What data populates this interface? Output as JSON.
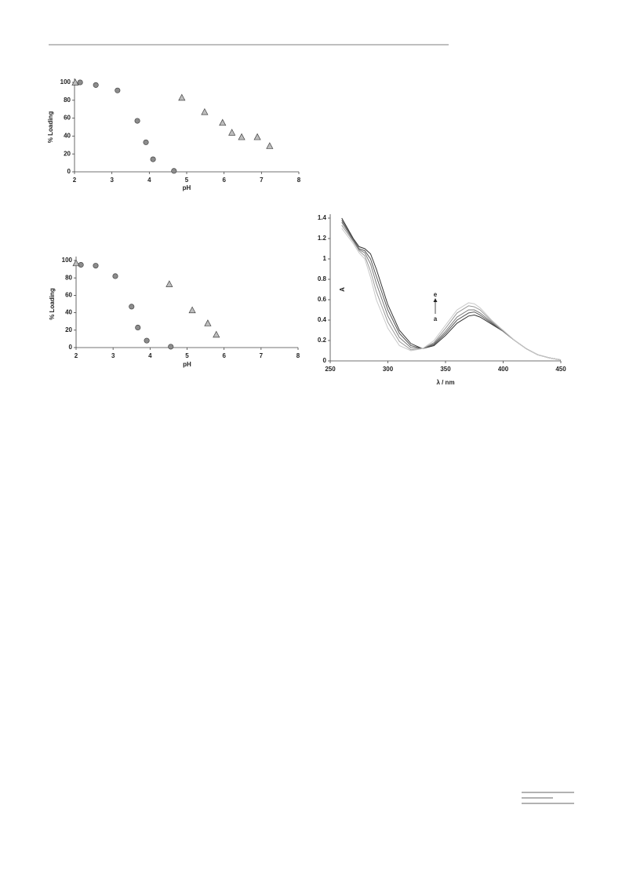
{
  "chart_data": [
    {
      "type": "scatter",
      "ylabel": "% Loading",
      "xlabel": "pH",
      "xlim": [
        2,
        8
      ],
      "xticks": [
        2,
        3,
        4,
        5,
        6,
        7,
        8
      ],
      "ylim": [
        0,
        100
      ],
      "yticks": [
        0,
        20,
        40,
        60,
        80,
        100
      ],
      "series": [
        {
          "marker": "circle",
          "color": "#8c8c8c",
          "x": [
            2.15,
            2.57,
            3.15,
            3.68,
            3.91,
            4.1,
            4.66
          ],
          "values": [
            100,
            97,
            91,
            57,
            33,
            14,
            1
          ]
        },
        {
          "marker": "triangle",
          "color": "#bdbdbd",
          "x": [
            2.02,
            4.87,
            5.48,
            5.96,
            6.21,
            6.47,
            6.89,
            7.22
          ],
          "values": [
            100,
            83,
            67,
            55,
            44,
            39,
            39,
            29
          ]
        }
      ]
    },
    {
      "type": "scatter",
      "ylabel": "% Loading",
      "xlabel": "pH",
      "xlim": [
        2,
        8
      ],
      "xticks": [
        2,
        3,
        4,
        5,
        6,
        7,
        8
      ],
      "ylim": [
        0,
        100
      ],
      "yticks": [
        0,
        20,
        40,
        60,
        80,
        100
      ],
      "series": [
        {
          "marker": "circle",
          "color": "#8c8c8c",
          "x": [
            2.13,
            2.53,
            3.06,
            3.5,
            3.67,
            3.91,
            4.56
          ],
          "values": [
            95,
            94,
            82,
            47,
            23,
            8,
            1
          ]
        },
        {
          "marker": "triangle",
          "color": "#bdbdbd",
          "x": [
            2.0,
            4.52,
            5.14,
            5.56,
            5.79
          ],
          "values": [
            97,
            73,
            43,
            28,
            15
          ]
        }
      ]
    },
    {
      "type": "line",
      "ylabel": "A",
      "xlabel": "λ / nm",
      "xlim": [
        250,
        450
      ],
      "xticks": [
        250,
        300,
        350,
        400,
        450
      ],
      "ylim": [
        0,
        1.4
      ],
      "yticks": [
        0,
        0.2,
        0.4,
        0.6,
        0.8,
        1,
        1.2,
        1.4
      ],
      "annotations": [
        "e",
        "a"
      ],
      "x": [
        260,
        270,
        275,
        280,
        285,
        290,
        300,
        310,
        320,
        330,
        340,
        350,
        360,
        370,
        375,
        380,
        390,
        400,
        410,
        420,
        430,
        440,
        450
      ],
      "series": [
        {
          "color": "#333333",
          "values": [
            1.4,
            1.2,
            1.12,
            1.1,
            1.05,
            0.9,
            0.55,
            0.3,
            0.17,
            0.12,
            0.15,
            0.25,
            0.37,
            0.44,
            0.45,
            0.43,
            0.36,
            0.29,
            0.2,
            0.12,
            0.06,
            0.03,
            0.01
          ]
        },
        {
          "color": "#555555",
          "values": [
            1.38,
            1.19,
            1.1,
            1.08,
            1.0,
            0.83,
            0.5,
            0.27,
            0.15,
            0.12,
            0.16,
            0.27,
            0.4,
            0.47,
            0.48,
            0.45,
            0.37,
            0.29,
            0.2,
            0.12,
            0.06,
            0.03,
            0.01
          ]
        },
        {
          "color": "#777777",
          "values": [
            1.36,
            1.18,
            1.09,
            1.06,
            0.95,
            0.76,
            0.44,
            0.23,
            0.13,
            0.12,
            0.17,
            0.29,
            0.43,
            0.5,
            0.5,
            0.47,
            0.38,
            0.29,
            0.2,
            0.12,
            0.06,
            0.03,
            0.01
          ]
        },
        {
          "color": "#9a9a9a",
          "values": [
            1.33,
            1.17,
            1.08,
            1.03,
            0.88,
            0.68,
            0.38,
            0.19,
            0.11,
            0.12,
            0.18,
            0.32,
            0.47,
            0.54,
            0.53,
            0.5,
            0.39,
            0.3,
            0.2,
            0.12,
            0.06,
            0.03,
            0.01
          ]
        },
        {
          "color": "#c8c8c8",
          "values": [
            1.3,
            1.15,
            1.06,
            1.0,
            0.82,
            0.6,
            0.32,
            0.15,
            0.1,
            0.12,
            0.2,
            0.35,
            0.5,
            0.57,
            0.56,
            0.52,
            0.4,
            0.3,
            0.2,
            0.12,
            0.06,
            0.03,
            0.01
          ]
        }
      ]
    }
  ]
}
